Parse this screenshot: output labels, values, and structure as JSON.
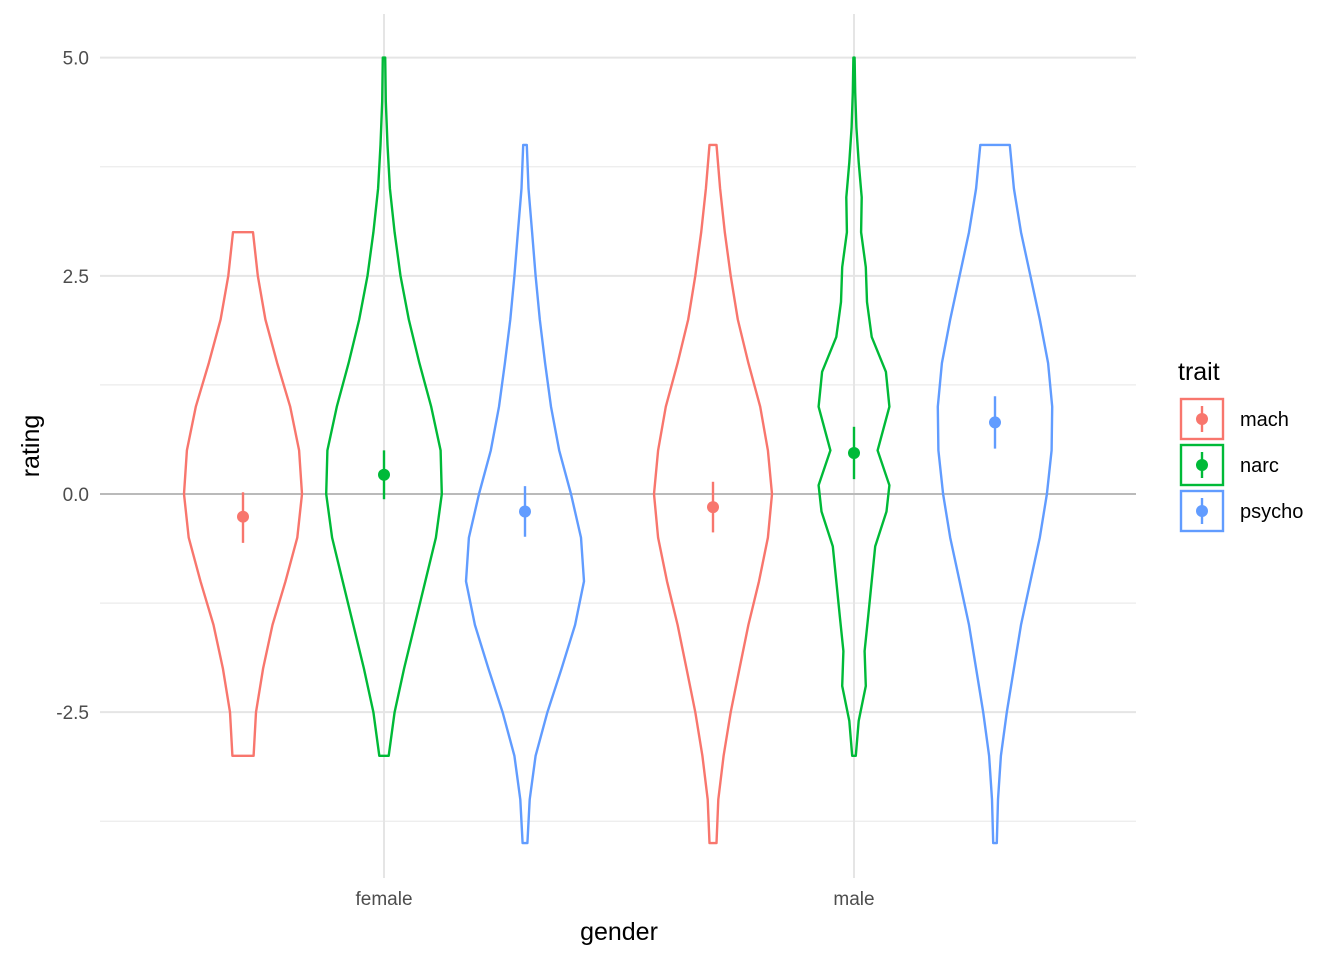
{
  "chart_data": {
    "type": "violin",
    "xlabel": "gender",
    "ylabel": "rating",
    "categories": [
      "female",
      "male"
    ],
    "ylim": [
      -4.4,
      5.5
    ],
    "yticks": [
      -2.5,
      0.0,
      2.5,
      5.0
    ],
    "ytick_labels": [
      "-2.5",
      "0.0",
      "2.5",
      "5.0"
    ],
    "y_minor_gridlines": [
      -3.75,
      -1.25,
      1.25,
      3.75
    ],
    "reference_line_y": 0,
    "grid": true,
    "legend": {
      "title": "trait",
      "position": "right",
      "entries": [
        "mach",
        "narc",
        "psycho"
      ]
    },
    "series": [
      {
        "name": "mach",
        "color": "#F8766D",
        "groups": [
          {
            "category": "female",
            "y_range": [
              -3,
              3
            ],
            "mean": -0.26,
            "ci": [
              -0.56,
              0.02
            ],
            "density": [
              [
                -3,
                0.18
              ],
              [
                -2.5,
                0.22
              ],
              [
                -2,
                0.34
              ],
              [
                -1.5,
                0.5
              ],
              [
                -1,
                0.72
              ],
              [
                -0.5,
                0.92
              ],
              [
                0,
                1
              ],
              [
                0.5,
                0.95
              ],
              [
                1,
                0.8
              ],
              [
                1.5,
                0.58
              ],
              [
                2,
                0.38
              ],
              [
                2.5,
                0.25
              ],
              [
                3,
                0.17
              ]
            ]
          },
          {
            "category": "male",
            "y_range": [
              -4,
              4
            ],
            "mean": -0.15,
            "ci": [
              -0.44,
              0.14
            ],
            "density": [
              [
                -4,
                0.06
              ],
              [
                -3.5,
                0.09
              ],
              [
                -3,
                0.18
              ],
              [
                -2.5,
                0.3
              ],
              [
                -2,
                0.45
              ],
              [
                -1.5,
                0.6
              ],
              [
                -1,
                0.78
              ],
              [
                -0.5,
                0.93
              ],
              [
                0,
                1
              ],
              [
                0.5,
                0.93
              ],
              [
                1,
                0.8
              ],
              [
                1.5,
                0.6
              ],
              [
                2,
                0.42
              ],
              [
                2.5,
                0.3
              ],
              [
                3,
                0.2
              ],
              [
                3.5,
                0.12
              ],
              [
                4,
                0.06
              ]
            ]
          }
        ]
      },
      {
        "name": "narc",
        "color": "#00BA38",
        "groups": [
          {
            "category": "female",
            "y_range": [
              -3,
              5
            ],
            "mean": 0.22,
            "ci": [
              -0.06,
              0.5
            ],
            "density": [
              [
                -3,
                0.08
              ],
              [
                -2.5,
                0.18
              ],
              [
                -2,
                0.34
              ],
              [
                -1.5,
                0.52
              ],
              [
                -1,
                0.7
              ],
              [
                -0.5,
                0.88
              ],
              [
                0,
                0.98
              ],
              [
                0.5,
                0.96
              ],
              [
                1,
                0.8
              ],
              [
                1.5,
                0.6
              ],
              [
                2,
                0.42
              ],
              [
                2.5,
                0.28
              ],
              [
                3,
                0.18
              ],
              [
                3.5,
                0.1
              ],
              [
                4,
                0.06
              ],
              [
                4.5,
                0.03
              ],
              [
                5,
                0.02
              ]
            ]
          },
          {
            "category": "male",
            "y_range": [
              -3,
              5
            ],
            "mean": 0.47,
            "ci": [
              0.17,
              0.77
            ],
            "density": [
              [
                -3,
                0.03
              ],
              [
                -2.6,
                0.08
              ],
              [
                -2.2,
                0.2
              ],
              [
                -1.8,
                0.18
              ],
              [
                -1.4,
                0.24
              ],
              [
                -1,
                0.3
              ],
              [
                -0.6,
                0.36
              ],
              [
                -0.2,
                0.55
              ],
              [
                0.1,
                0.6
              ],
              [
                0.5,
                0.4
              ],
              [
                1,
                0.6
              ],
              [
                1.4,
                0.54
              ],
              [
                1.8,
                0.3
              ],
              [
                2.2,
                0.22
              ],
              [
                2.6,
                0.2
              ],
              [
                3,
                0.12
              ],
              [
                3.4,
                0.13
              ],
              [
                3.8,
                0.08
              ],
              [
                4.2,
                0.04
              ],
              [
                4.6,
                0.02
              ],
              [
                5,
                0.01
              ]
            ]
          }
        ]
      },
      {
        "name": "psycho",
        "color": "#619CFF",
        "groups": [
          {
            "category": "female",
            "y_range": [
              -4,
              4
            ],
            "mean": -0.2,
            "ci": [
              -0.49,
              0.09
            ],
            "density": [
              [
                -4,
                0.04
              ],
              [
                -3.5,
                0.08
              ],
              [
                -3,
                0.18
              ],
              [
                -2.5,
                0.38
              ],
              [
                -2,
                0.62
              ],
              [
                -1.5,
                0.85
              ],
              [
                -1,
                1
              ],
              [
                -0.5,
                0.95
              ],
              [
                0,
                0.78
              ],
              [
                0.5,
                0.58
              ],
              [
                1,
                0.44
              ],
              [
                1.5,
                0.34
              ],
              [
                2,
                0.25
              ],
              [
                2.5,
                0.18
              ],
              [
                3,
                0.12
              ],
              [
                3.5,
                0.06
              ],
              [
                4,
                0.03
              ]
            ]
          },
          {
            "category": "male",
            "y_range": [
              -4,
              4
            ],
            "mean": 0.82,
            "ci": [
              0.52,
              1.12
            ],
            "density": [
              [
                -4,
                0.03
              ],
              [
                -3.5,
                0.05
              ],
              [
                -3,
                0.1
              ],
              [
                -2.5,
                0.2
              ],
              [
                -2,
                0.32
              ],
              [
                -1.5,
                0.44
              ],
              [
                -1,
                0.6
              ],
              [
                -0.5,
                0.76
              ],
              [
                0,
                0.88
              ],
              [
                0.5,
                0.96
              ],
              [
                1,
                0.97
              ],
              [
                1.5,
                0.9
              ],
              [
                2,
                0.76
              ],
              [
                2.5,
                0.6
              ],
              [
                3,
                0.44
              ],
              [
                3.5,
                0.32
              ],
              [
                4,
                0.25
              ]
            ]
          }
        ]
      }
    ]
  }
}
